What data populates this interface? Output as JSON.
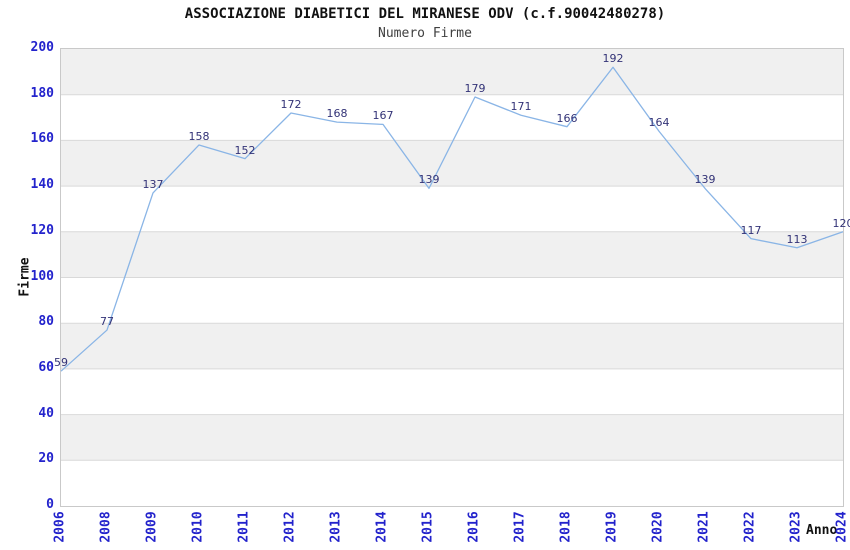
{
  "chart_data": {
    "type": "line",
    "title": "ASSOCIAZIONE DIABETICI DEL MIRANESE ODV (c.f.90042480278)",
    "subtitle": "Numero Firme",
    "xlabel": "Anno",
    "ylabel": "Firme",
    "categories": [
      "2006",
      "2008",
      "2009",
      "2010",
      "2011",
      "2012",
      "2013",
      "2014",
      "2015",
      "2016",
      "2017",
      "2018",
      "2019",
      "2020",
      "2021",
      "2022",
      "2023",
      "2024"
    ],
    "values": [
      59,
      77,
      137,
      158,
      152,
      172,
      168,
      167,
      139,
      179,
      171,
      166,
      192,
      164,
      139,
      117,
      113,
      120
    ],
    "ylim": [
      0,
      200
    ],
    "ytick_step": 20,
    "grid": "horizontal-gridlines-with-alternating-bands",
    "legend": "none",
    "colors": {
      "line": "#8ab5e6",
      "tick_label": "#2323cc",
      "point_label": "#333377",
      "band_gray": "#f0f0f0",
      "band_white": "#ffffff",
      "gridline": "#d9d9d9",
      "plot_border": "#c9c9c9",
      "title": "#111111",
      "subtitle": "#404040",
      "axis_label": "#111111"
    }
  }
}
